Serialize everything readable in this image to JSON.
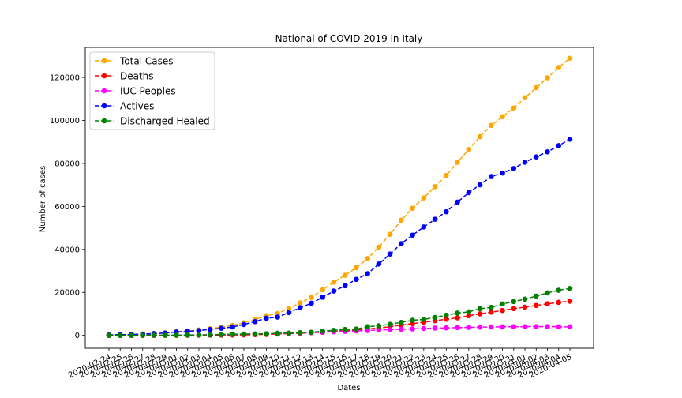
{
  "chart_data": {
    "type": "line",
    "title": "National of COVID 2019 in Italy",
    "xlabel": "Dates",
    "ylabel": "Number of cases",
    "ylim": [
      -6000,
      134000
    ],
    "yticks": [
      0,
      20000,
      40000,
      60000,
      80000,
      100000,
      120000
    ],
    "ytick_labels": [
      "0",
      "20000",
      "40000",
      "60000",
      "80000",
      "100000",
      "120000"
    ],
    "grid": false,
    "legend_position": "top-left",
    "x": [
      "2020-02-24",
      "2020-02-25",
      "2020-02-26",
      "2020-02-27",
      "2020-02-28",
      "2020-02-29",
      "2020-03-01",
      "2020-03-02",
      "2020-03-03",
      "2020-03-04",
      "2020-03-05",
      "2020-03-06",
      "2020-03-07",
      "2020-03-08",
      "2020-03-09",
      "2020-03-10",
      "2020-03-11",
      "2020-03-12",
      "2020-03-13",
      "2020-03-14",
      "2020-03-15",
      "2020-03-16",
      "2020-03-17",
      "2020-03-18",
      "2020-03-19",
      "2020-03-20",
      "2020-03-21",
      "2020-03-22",
      "2020-03-23",
      "2020-03-24",
      "2020-03-25",
      "2020-03-26",
      "2020-03-27",
      "2020-03-28",
      "2020-03-29",
      "2020-03-30",
      "2020-03-31",
      "2020-04-01",
      "2020-04-02",
      "2020-04-03",
      "2020-04-04",
      "2020-04-05"
    ],
    "series": [
      {
        "name": "Total Cases",
        "color": "#ffa500",
        "values": [
          229,
          322,
          400,
          650,
          888,
          1128,
          1694,
          2036,
          2502,
          3089,
          3858,
          4636,
          5883,
          7375,
          9172,
          10149,
          12462,
          15113,
          17660,
          21157,
          24747,
          27980,
          31506,
          35713,
          41035,
          47021,
          53578,
          59138,
          63927,
          69176,
          74386,
          80539,
          86498,
          92472,
          97689,
          101739,
          105792,
          110574,
          115242,
          119827,
          124632,
          128948
        ]
      },
      {
        "name": "Deaths",
        "color": "#ff0000",
        "values": [
          7,
          10,
          12,
          17,
          21,
          29,
          34,
          52,
          79,
          107,
          148,
          197,
          233,
          366,
          463,
          631,
          827,
          1016,
          1266,
          1441,
          1809,
          2158,
          2503,
          2978,
          3405,
          4032,
          4825,
          5476,
          6077,
          6820,
          7503,
          8165,
          9134,
          10023,
          10779,
          11591,
          12428,
          13155,
          13915,
          14681,
          15362,
          15887
        ]
      },
      {
        "name": "IUC Peoples",
        "color": "#ff00ff",
        "values": [
          26,
          35,
          36,
          56,
          64,
          105,
          140,
          166,
          229,
          295,
          351,
          462,
          567,
          650,
          733,
          877,
          1028,
          1153,
          1328,
          1518,
          1672,
          1851,
          2060,
          2257,
          2498,
          2655,
          2857,
          3009,
          3204,
          3396,
          3489,
          3612,
          3732,
          3856,
          3906,
          3981,
          4023,
          4035,
          4053,
          4068,
          3994,
          3977
        ]
      },
      {
        "name": "Actives",
        "color": "#0000ff",
        "values": [
          221,
          311,
          385,
          588,
          821,
          1049,
          1577,
          1835,
          2263,
          2706,
          3296,
          3916,
          5061,
          6387,
          7985,
          8514,
          10590,
          12839,
          14955,
          17750,
          20603,
          23073,
          26062,
          28710,
          33190,
          37860,
          42681,
          46638,
          50418,
          54030,
          57521,
          62013,
          66414,
          70065,
          73880,
          75528,
          77635,
          80572,
          83049,
          85388,
          88274,
          91246
        ]
      },
      {
        "name": "Discharged Healed",
        "color": "#008000",
        "values": [
          1,
          1,
          3,
          45,
          46,
          50,
          83,
          149,
          160,
          276,
          414,
          523,
          589,
          622,
          724,
          1004,
          1045,
          1258,
          1439,
          1966,
          2335,
          2749,
          2941,
          4025,
          4440,
          5129,
          6072,
          7024,
          7432,
          8326,
          9362,
          10361,
          10950,
          12384,
          13030,
          14620,
          15729,
          16847,
          18278,
          19758,
          20996,
          21815
        ]
      }
    ]
  }
}
